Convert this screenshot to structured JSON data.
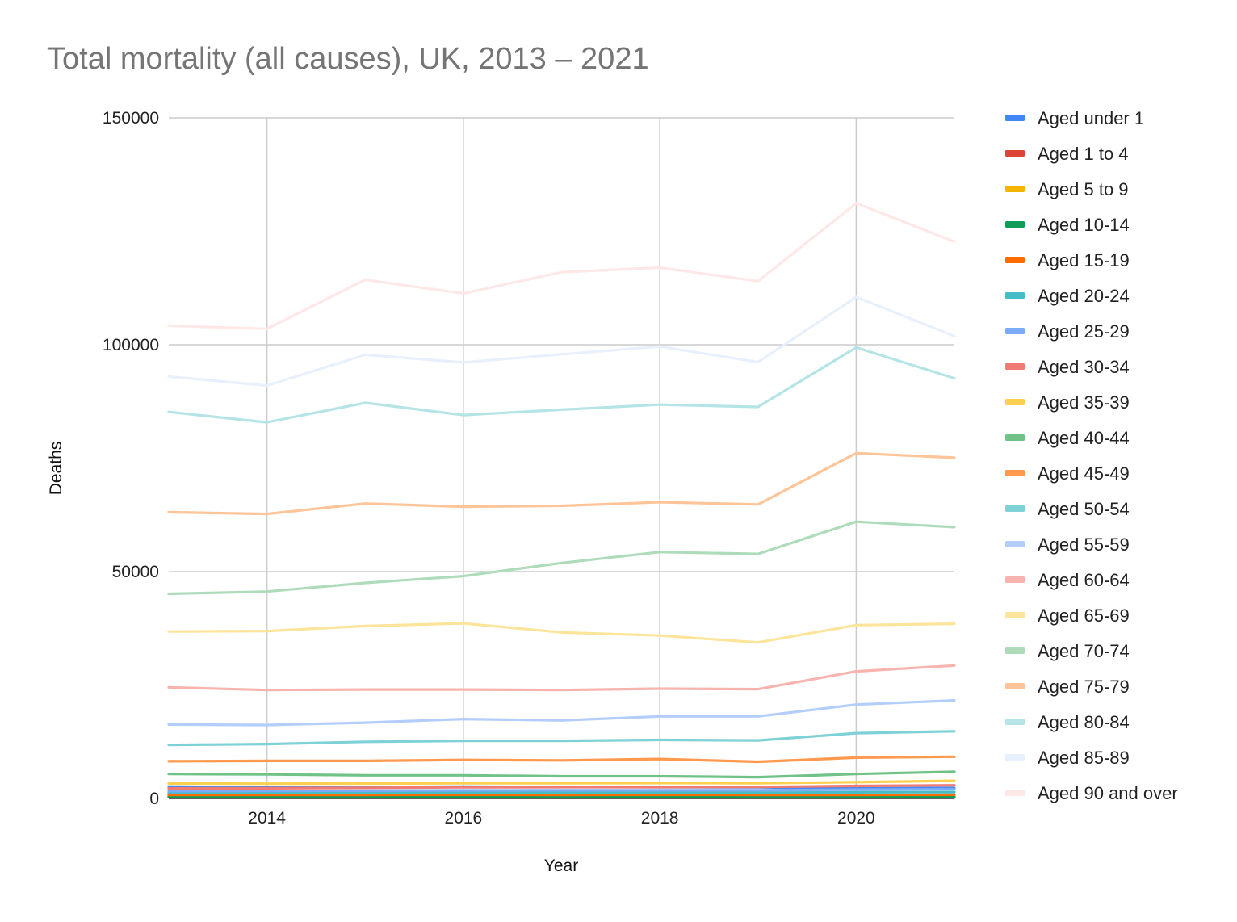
{
  "chart_data": {
    "type": "line",
    "title": "Total mortality (all causes), UK, 2013 – 2021",
    "xlabel": "Year",
    "ylabel": "Deaths",
    "x": [
      2013,
      2014,
      2015,
      2016,
      2017,
      2018,
      2019,
      2020,
      2021
    ],
    "xlim": [
      2013,
      2021
    ],
    "xticks": [
      "2014",
      "2016",
      "2018",
      "2020"
    ],
    "ylim": [
      0,
      150000
    ],
    "yticks": [
      "0",
      "50000",
      "100000",
      "150000"
    ],
    "grid": true,
    "legend_position": "right",
    "series": [
      {
        "name": "Aged under 1",
        "color": "#4285f4",
        "values": [
          2600,
          2500,
          2550,
          2600,
          2550,
          2500,
          2450,
          2250,
          2300
        ]
      },
      {
        "name": "Aged 1 to 4",
        "color": "#db4437",
        "values": [
          420,
          400,
          410,
          400,
          390,
          380,
          370,
          300,
          320
        ]
      },
      {
        "name": "Aged 5 to 9",
        "color": "#f4b400",
        "values": [
          230,
          230,
          225,
          230,
          220,
          215,
          210,
          180,
          190
        ]
      },
      {
        "name": "Aged 10-14",
        "color": "#0f9d58",
        "values": [
          280,
          270,
          275,
          280,
          280,
          275,
          280,
          250,
          270
        ]
      },
      {
        "name": "Aged 15-19",
        "color": "#ff6d01",
        "values": [
          780,
          760,
          780,
          800,
          790,
          800,
          790,
          780,
          820
        ]
      },
      {
        "name": "Aged 20-24",
        "color": "#46bdc6",
        "values": [
          1250,
          1230,
          1280,
          1300,
          1320,
          1300,
          1280,
          1350,
          1400
        ]
      },
      {
        "name": "Aged 25-29",
        "color": "#7baaf7",
        "values": [
          1600,
          1650,
          1700,
          1780,
          1800,
          1790,
          1800,
          1950,
          2050
        ]
      },
      {
        "name": "Aged 30-34",
        "color": "#f07b72",
        "values": [
          2200,
          2250,
          2350,
          2450,
          2500,
          2500,
          2550,
          2750,
          2900
        ]
      },
      {
        "name": "Aged 35-39",
        "color": "#fcd04f",
        "values": [
          3300,
          3250,
          3300,
          3350,
          3350,
          3400,
          3350,
          3600,
          3900
        ]
      },
      {
        "name": "Aged 40-44",
        "color": "#71c287",
        "values": [
          5400,
          5300,
          5100,
          5100,
          4900,
          4900,
          4700,
          5400,
          5900
        ]
      },
      {
        "name": "Aged 45-49",
        "color": "#ff994d",
        "values": [
          8200,
          8300,
          8300,
          8500,
          8400,
          8700,
          8100,
          9000,
          9200
        ]
      },
      {
        "name": "Aged 50-54",
        "color": "#7ed1d7",
        "values": [
          11800,
          12000,
          12500,
          12700,
          12700,
          12900,
          12800,
          14400,
          14800
        ]
      },
      {
        "name": "Aged 55-59",
        "color": "#b3cefb",
        "values": [
          16300,
          16200,
          16700,
          17500,
          17200,
          18100,
          18100,
          20700,
          21600
        ]
      },
      {
        "name": "Aged 60-64",
        "color": "#f7b4ae",
        "values": [
          24500,
          23900,
          24000,
          24000,
          23900,
          24200,
          24100,
          28000,
          29300
        ]
      },
      {
        "name": "Aged 65-69",
        "color": "#fde49b",
        "values": [
          36800,
          36900,
          38000,
          38600,
          36600,
          35900,
          34400,
          38200,
          38500
        ]
      },
      {
        "name": "Aged 70-74",
        "color": "#aedcba",
        "values": [
          45100,
          45600,
          47500,
          49000,
          51900,
          54300,
          53900,
          61000,
          59800
        ]
      },
      {
        "name": "Aged 75-79",
        "color": "#ffc599",
        "values": [
          63100,
          62700,
          65000,
          64300,
          64500,
          65300,
          64800,
          76100,
          75100
        ]
      },
      {
        "name": "Aged 80-84",
        "color": "#b5e4e7",
        "values": [
          85200,
          82900,
          87200,
          84500,
          85700,
          86800,
          86300,
          99400,
          92600
        ]
      },
      {
        "name": "Aged 85-89",
        "color": "#e8f0fe",
        "values": [
          93000,
          91000,
          97800,
          96100,
          97900,
          99600,
          96200,
          110500,
          101900
        ]
      },
      {
        "name": "Aged 90 and over",
        "color": "#fde8e7",
        "values": [
          104200,
          103500,
          114300,
          111300,
          116000,
          117000,
          114000,
          131200,
          122700
        ]
      }
    ]
  }
}
